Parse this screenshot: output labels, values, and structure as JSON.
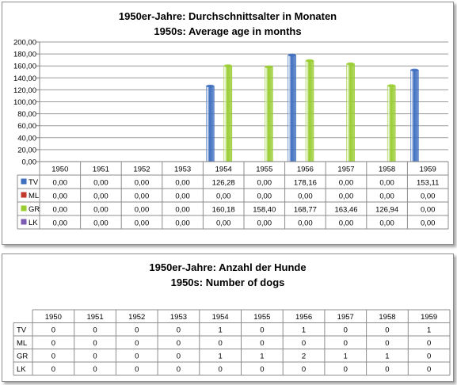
{
  "chart_data": [
    {
      "type": "bar",
      "title": "1950er-Jahre: Durchschnittsalter in Monaten",
      "subtitle": "1950s: Average age in months",
      "categories": [
        "1950",
        "1951",
        "1952",
        "1953",
        "1954",
        "1955",
        "1956",
        "1957",
        "1958",
        "1959"
      ],
      "ylim": [
        0,
        200
      ],
      "yticks": [
        "0,00",
        "20,00",
        "40,00",
        "60,00",
        "80,00",
        "100,00",
        "120,00",
        "140,00",
        "160,00",
        "180,00",
        "200,00"
      ],
      "grid": true,
      "legend": "data table",
      "series": [
        {
          "name": "TV",
          "color": "#3f6fbf",
          "values": [
            0,
            0,
            0,
            0,
            126.28,
            0,
            178.16,
            0,
            0,
            153.11
          ],
          "labels": [
            "0,00",
            "0,00",
            "0,00",
            "0,00",
            "126,28",
            "0,00",
            "178,16",
            "0,00",
            "0,00",
            "153,11"
          ]
        },
        {
          "name": "ML",
          "color": "#c0392b",
          "values": [
            0,
            0,
            0,
            0,
            0,
            0,
            0,
            0,
            0,
            0
          ],
          "labels": [
            "0,00",
            "0,00",
            "0,00",
            "0,00",
            "0,00",
            "0,00",
            "0,00",
            "0,00",
            "0,00",
            "0,00"
          ]
        },
        {
          "name": "GR",
          "color": "#9acd32",
          "values": [
            0,
            0,
            0,
            0,
            160.18,
            158.4,
            168.77,
            163.46,
            126.94,
            0
          ],
          "labels": [
            "0,00",
            "0,00",
            "0,00",
            "0,00",
            "160,18",
            "158,40",
            "168,77",
            "163,46",
            "126,94",
            "0,00"
          ]
        },
        {
          "name": "LK",
          "color": "#7b5cb0",
          "values": [
            0,
            0,
            0,
            0,
            0,
            0,
            0,
            0,
            0,
            0
          ],
          "labels": [
            "0,00",
            "0,00",
            "0,00",
            "0,00",
            "0,00",
            "0,00",
            "0,00",
            "0,00",
            "0,00",
            "0,00"
          ]
        }
      ]
    },
    {
      "type": "table",
      "title": "1950er-Jahre: Anzahl der Hunde",
      "subtitle": "1950s: Number of dogs",
      "categories": [
        "1950",
        "1951",
        "1952",
        "1953",
        "1954",
        "1955",
        "1956",
        "1957",
        "1958",
        "1959"
      ],
      "series": [
        {
          "name": "TV",
          "values": [
            0,
            0,
            0,
            0,
            1,
            0,
            1,
            0,
            0,
            1
          ]
        },
        {
          "name": "ML",
          "values": [
            0,
            0,
            0,
            0,
            0,
            0,
            0,
            0,
            0,
            0
          ]
        },
        {
          "name": "GR",
          "values": [
            0,
            0,
            0,
            0,
            1,
            1,
            2,
            1,
            1,
            0
          ]
        },
        {
          "name": "LK",
          "values": [
            0,
            0,
            0,
            0,
            0,
            0,
            0,
            0,
            0,
            0
          ]
        }
      ]
    }
  ]
}
